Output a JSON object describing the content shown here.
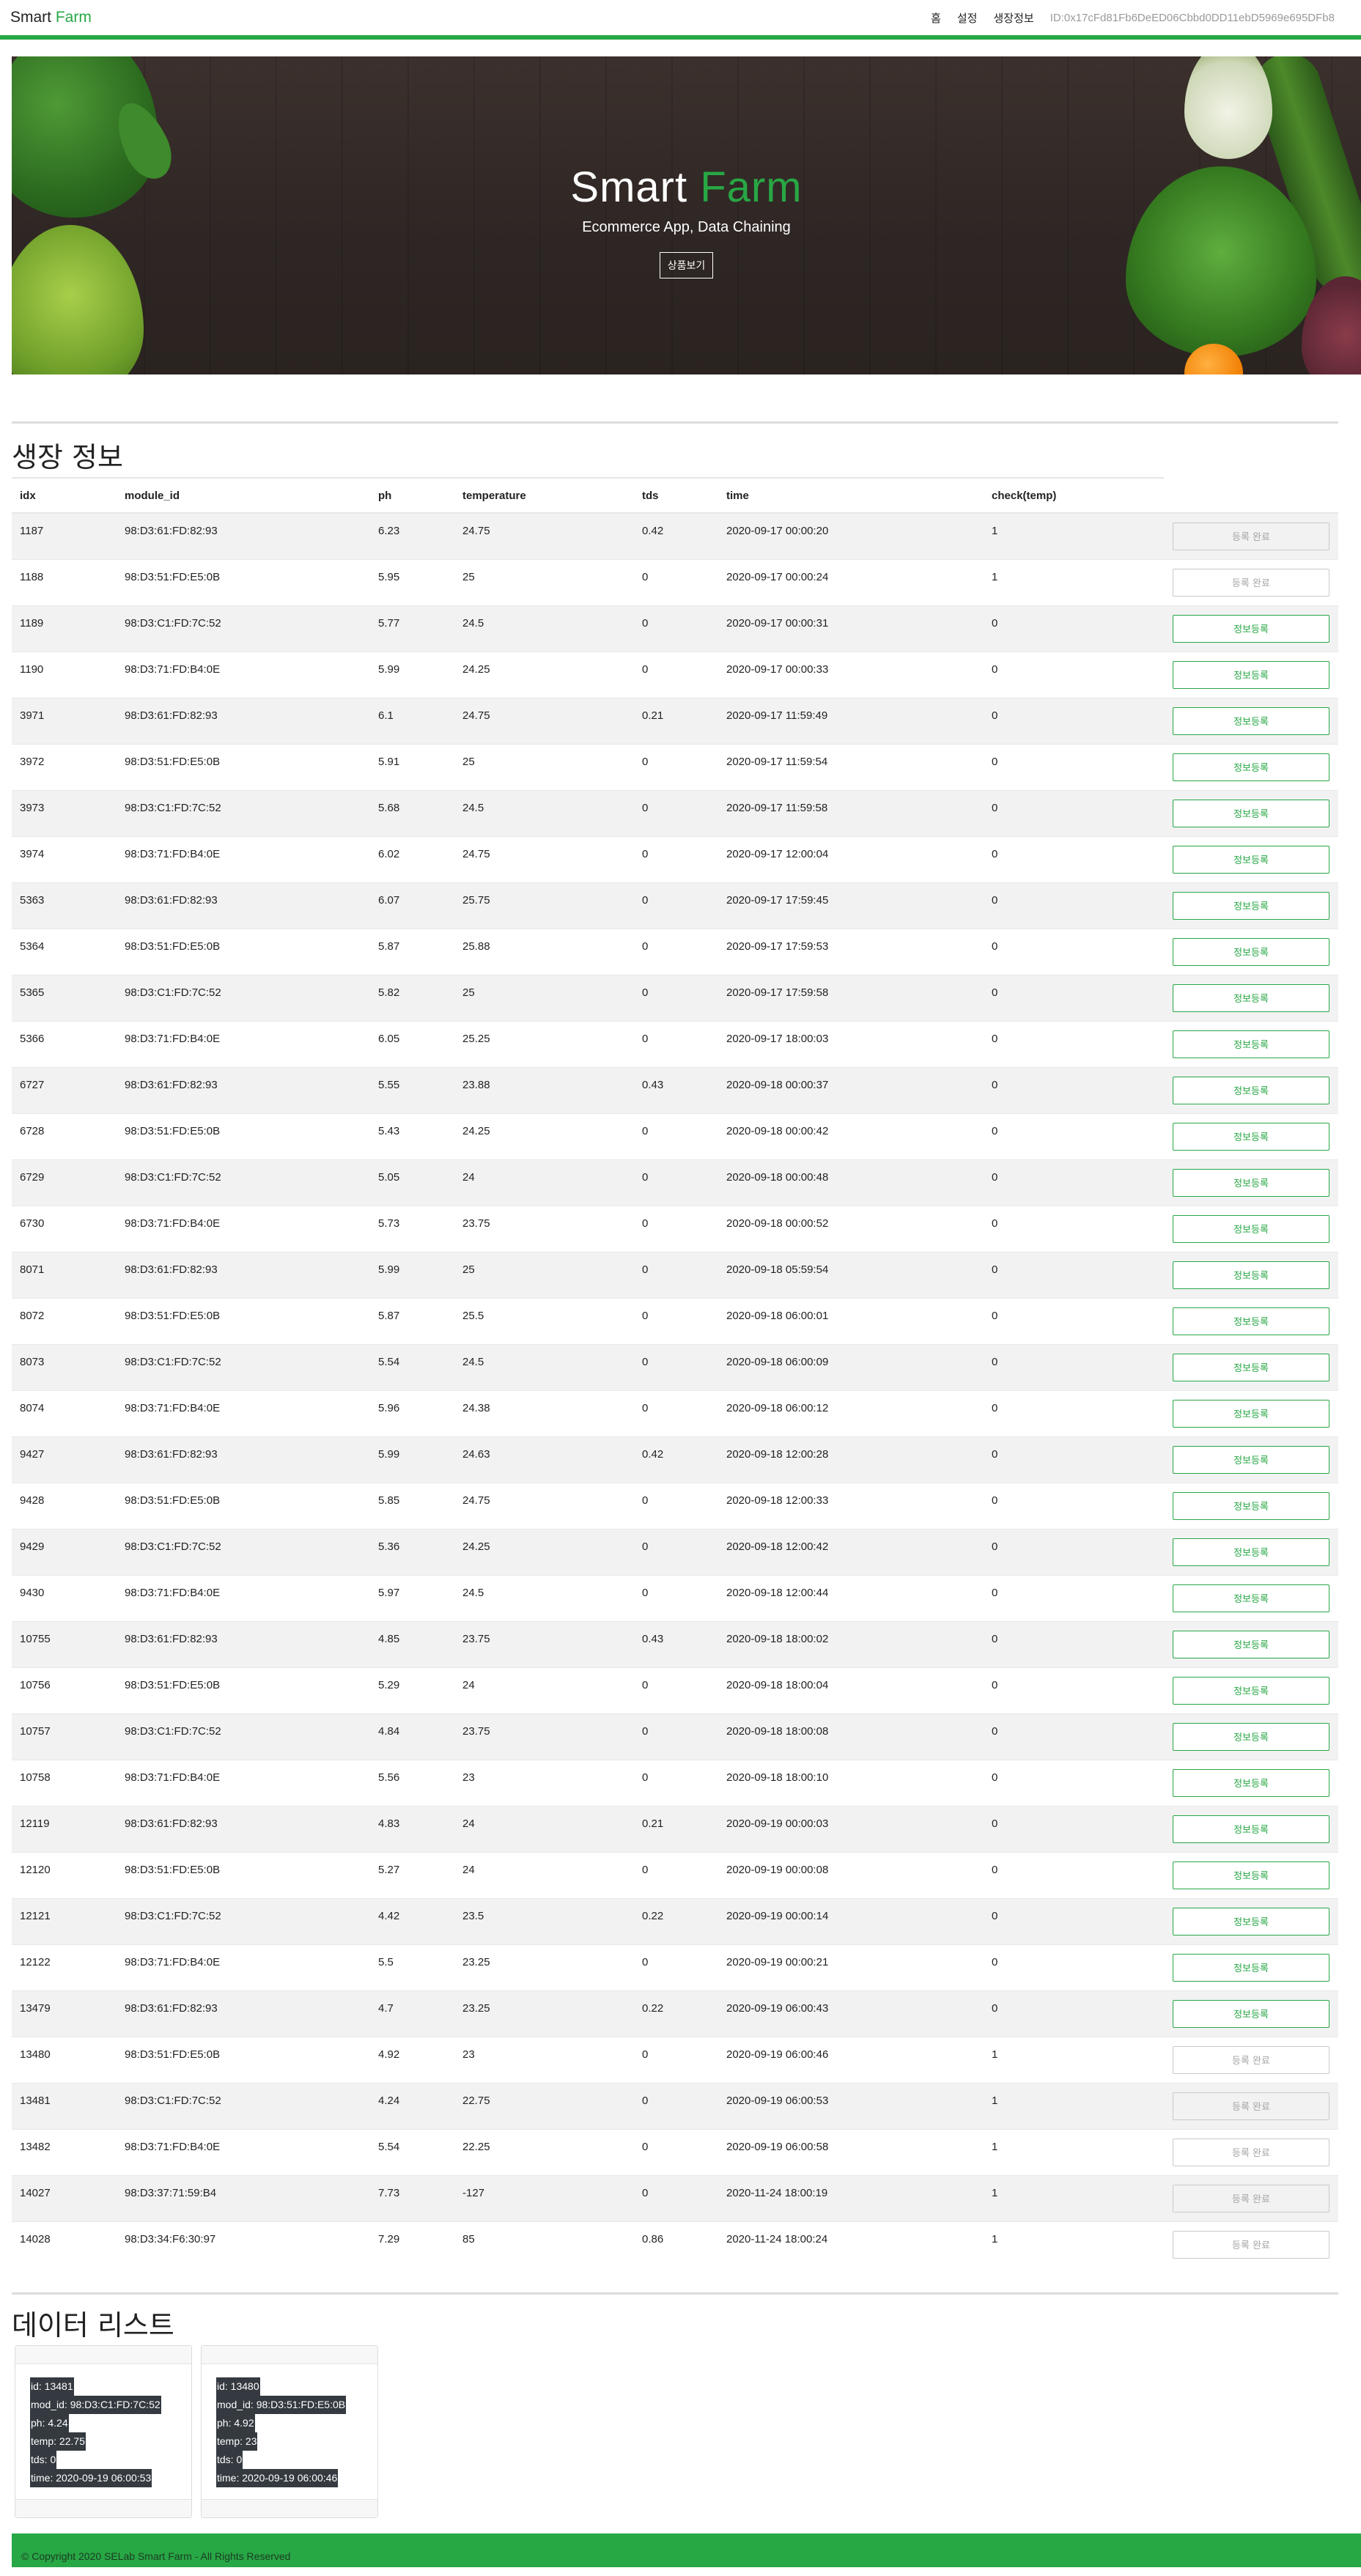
{
  "nav": {
    "brand_main": "Smart ",
    "brand_accent": "Farm",
    "links": [
      "홈",
      "설정",
      "생장정보"
    ],
    "id_text": "ID:0x17cFd81Fb6DeED06Cbbd0DD11ebD5969e695DFb8"
  },
  "hero": {
    "title_main": "Smart ",
    "title_accent": "Farm",
    "subtitle": "Ecommerce App, Data Chaining",
    "button": "상품보기"
  },
  "growth": {
    "title": "생장 정보",
    "columns": [
      "idx",
      "module_id",
      "ph",
      "temperature",
      "tds",
      "time",
      "check(temp)"
    ],
    "register_label": "정보등록",
    "done_label": "등록 완료",
    "rows": [
      [
        "1187",
        "98:D3:61:FD:82:93",
        "6.23",
        "24.75",
        "0.42",
        "2020-09-17 00:00:20",
        "1"
      ],
      [
        "1188",
        "98:D3:51:FD:E5:0B",
        "5.95",
        "25",
        "0",
        "2020-09-17 00:00:24",
        "1"
      ],
      [
        "1189",
        "98:D3:C1:FD:7C:52",
        "5.77",
        "24.5",
        "0",
        "2020-09-17 00:00:31",
        "0"
      ],
      [
        "1190",
        "98:D3:71:FD:B4:0E",
        "5.99",
        "24.25",
        "0",
        "2020-09-17 00:00:33",
        "0"
      ],
      [
        "3971",
        "98:D3:61:FD:82:93",
        "6.1",
        "24.75",
        "0.21",
        "2020-09-17 11:59:49",
        "0"
      ],
      [
        "3972",
        "98:D3:51:FD:E5:0B",
        "5.91",
        "25",
        "0",
        "2020-09-17 11:59:54",
        "0"
      ],
      [
        "3973",
        "98:D3:C1:FD:7C:52",
        "5.68",
        "24.5",
        "0",
        "2020-09-17 11:59:58",
        "0"
      ],
      [
        "3974",
        "98:D3:71:FD:B4:0E",
        "6.02",
        "24.75",
        "0",
        "2020-09-17 12:00:04",
        "0"
      ],
      [
        "5363",
        "98:D3:61:FD:82:93",
        "6.07",
        "25.75",
        "0",
        "2020-09-17 17:59:45",
        "0"
      ],
      [
        "5364",
        "98:D3:51:FD:E5:0B",
        "5.87",
        "25.88",
        "0",
        "2020-09-17 17:59:53",
        "0"
      ],
      [
        "5365",
        "98:D3:C1:FD:7C:52",
        "5.82",
        "25",
        "0",
        "2020-09-17 17:59:58",
        "0"
      ],
      [
        "5366",
        "98:D3:71:FD:B4:0E",
        "6.05",
        "25.25",
        "0",
        "2020-09-17 18:00:03",
        "0"
      ],
      [
        "6727",
        "98:D3:61:FD:82:93",
        "5.55",
        "23.88",
        "0.43",
        "2020-09-18 00:00:37",
        "0"
      ],
      [
        "6728",
        "98:D3:51:FD:E5:0B",
        "5.43",
        "24.25",
        "0",
        "2020-09-18 00:00:42",
        "0"
      ],
      [
        "6729",
        "98:D3:C1:FD:7C:52",
        "5.05",
        "24",
        "0",
        "2020-09-18 00:00:48",
        "0"
      ],
      [
        "6730",
        "98:D3:71:FD:B4:0E",
        "5.73",
        "23.75",
        "0",
        "2020-09-18 00:00:52",
        "0"
      ],
      [
        "8071",
        "98:D3:61:FD:82:93",
        "5.99",
        "25",
        "0",
        "2020-09-18 05:59:54",
        "0"
      ],
      [
        "8072",
        "98:D3:51:FD:E5:0B",
        "5.87",
        "25.5",
        "0",
        "2020-09-18 06:00:01",
        "0"
      ],
      [
        "8073",
        "98:D3:C1:FD:7C:52",
        "5.54",
        "24.5",
        "0",
        "2020-09-18 06:00:09",
        "0"
      ],
      [
        "8074",
        "98:D3:71:FD:B4:0E",
        "5.96",
        "24.38",
        "0",
        "2020-09-18 06:00:12",
        "0"
      ],
      [
        "9427",
        "98:D3:61:FD:82:93",
        "5.99",
        "24.63",
        "0.42",
        "2020-09-18 12:00:28",
        "0"
      ],
      [
        "9428",
        "98:D3:51:FD:E5:0B",
        "5.85",
        "24.75",
        "0",
        "2020-09-18 12:00:33",
        "0"
      ],
      [
        "9429",
        "98:D3:C1:FD:7C:52",
        "5.36",
        "24.25",
        "0",
        "2020-09-18 12:00:42",
        "0"
      ],
      [
        "9430",
        "98:D3:71:FD:B4:0E",
        "5.97",
        "24.5",
        "0",
        "2020-09-18 12:00:44",
        "0"
      ],
      [
        "10755",
        "98:D3:61:FD:82:93",
        "4.85",
        "23.75",
        "0.43",
        "2020-09-18 18:00:02",
        "0"
      ],
      [
        "10756",
        "98:D3:51:FD:E5:0B",
        "5.29",
        "24",
        "0",
        "2020-09-18 18:00:04",
        "0"
      ],
      [
        "10757",
        "98:D3:C1:FD:7C:52",
        "4.84",
        "23.75",
        "0",
        "2020-09-18 18:00:08",
        "0"
      ],
      [
        "10758",
        "98:D3:71:FD:B4:0E",
        "5.56",
        "23",
        "0",
        "2020-09-18 18:00:10",
        "0"
      ],
      [
        "12119",
        "98:D3:61:FD:82:93",
        "4.83",
        "24",
        "0.21",
        "2020-09-19 00:00:03",
        "0"
      ],
      [
        "12120",
        "98:D3:51:FD:E5:0B",
        "5.27",
        "24",
        "0",
        "2020-09-19 00:00:08",
        "0"
      ],
      [
        "12121",
        "98:D3:C1:FD:7C:52",
        "4.42",
        "23.5",
        "0.22",
        "2020-09-19 00:00:14",
        "0"
      ],
      [
        "12122",
        "98:D3:71:FD:B4:0E",
        "5.5",
        "23.25",
        "0",
        "2020-09-19 00:00:21",
        "0"
      ],
      [
        "13479",
        "98:D3:61:FD:82:93",
        "4.7",
        "23.25",
        "0.22",
        "2020-09-19 06:00:43",
        "0"
      ],
      [
        "13480",
        "98:D3:51:FD:E5:0B",
        "4.92",
        "23",
        "0",
        "2020-09-19 06:00:46",
        "1"
      ],
      [
        "13481",
        "98:D3:C1:FD:7C:52",
        "4.24",
        "22.75",
        "0",
        "2020-09-19 06:00:53",
        "1"
      ],
      [
        "13482",
        "98:D3:71:FD:B4:0E",
        "5.54",
        "22.25",
        "0",
        "2020-09-19 06:00:58",
        "1"
      ],
      [
        "14027",
        "98:D3:37:71:59:B4",
        "7.73",
        "-127",
        "0",
        "2020-11-24 18:00:19",
        "1"
      ],
      [
        "14028",
        "98:D3:34:F6:30:97",
        "7.29",
        "85",
        "0.86",
        "2020-11-24 18:00:24",
        "1"
      ]
    ]
  },
  "datalist": {
    "title": "데이터 리스트",
    "cards": [
      [
        "id: 13481",
        "mod_id: 98:D3:C1:FD:7C:52",
        "ph: 4.24",
        "temp: 22.75",
        "tds: 0",
        "time: 2020-09-19 06:00:53"
      ],
      [
        "id: 13480",
        "mod_id: 98:D3:51:FD:E5:0B",
        "ph: 4.92",
        "temp: 23",
        "tds: 0",
        "time: 2020-09-19 06:00:46"
      ]
    ]
  },
  "footer": {
    "text": "© Copyright 2020 SELab Smart Farm - All Rights Reserved"
  },
  "colors": {
    "accent": "#28a745",
    "hero_bg": "#2e2624",
    "badge_bg": "#343a40"
  }
}
